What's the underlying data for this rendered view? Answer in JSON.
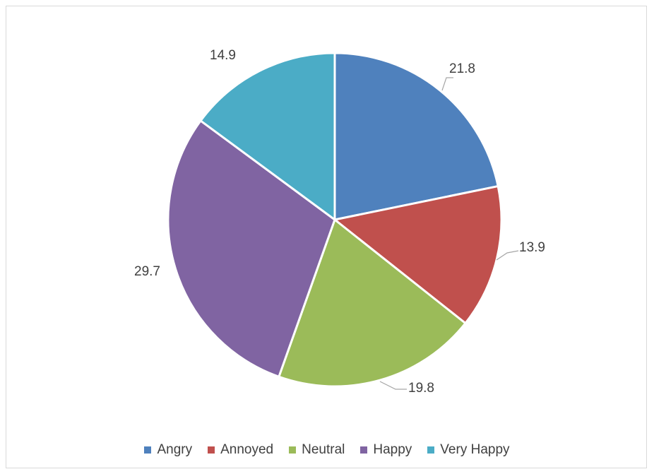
{
  "chart_data": {
    "type": "pie",
    "title": "",
    "categories": [
      "Angry",
      "Annoyed",
      "Neutral",
      "Happy",
      "Very Happy"
    ],
    "values": [
      21.8,
      13.9,
      19.8,
      29.7,
      14.9
    ],
    "value_labels": [
      "21.8",
      "13.9",
      "19.8",
      "29.7",
      "14.9"
    ],
    "colors": [
      "#4f81bd",
      "#c0504d",
      "#9bbb59",
      "#8064a2",
      "#4bacc6"
    ],
    "start_angle_deg": 0,
    "direction": "clockwise",
    "legend_position": "bottom"
  }
}
